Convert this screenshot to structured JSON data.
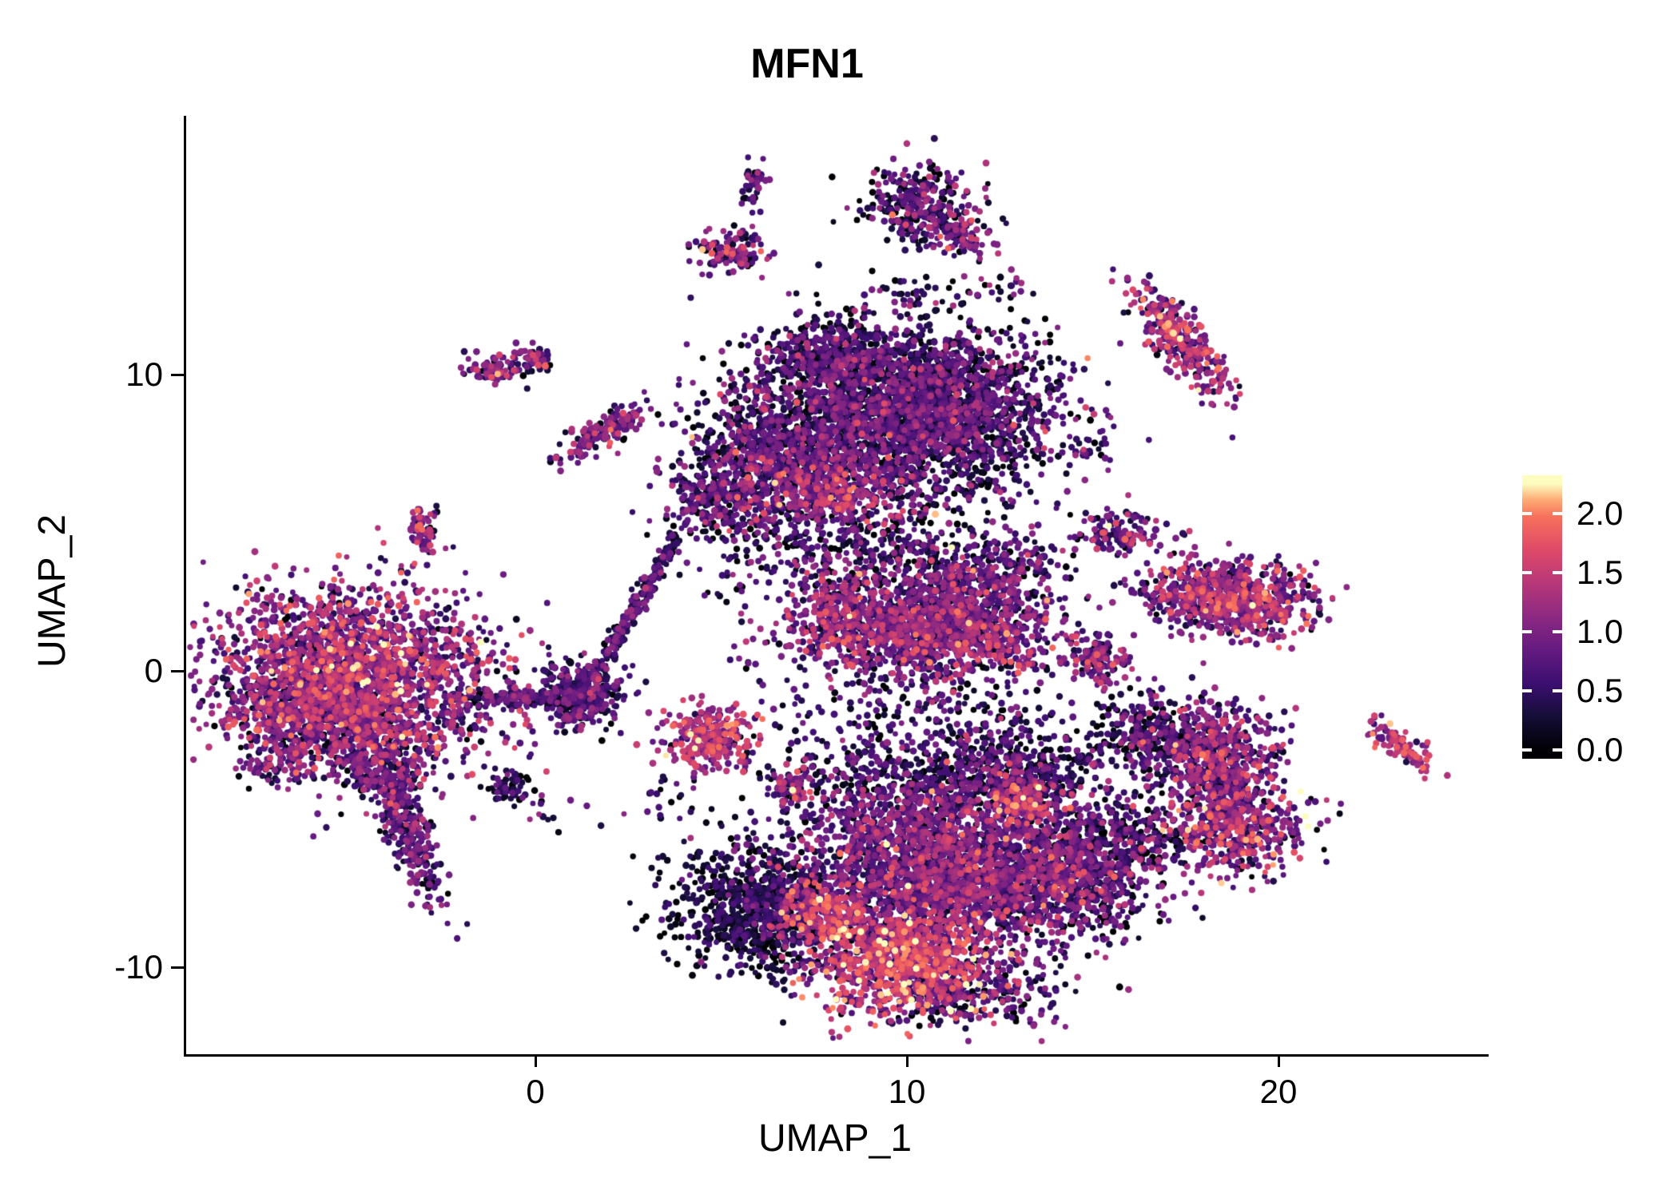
{
  "chart_data": {
    "type": "scatter",
    "title": "MFN1",
    "subtitle": "",
    "xlabel": "UMAP_1",
    "ylabel": "UMAP_2",
    "xlim": [
      -9.5,
      25.6
    ],
    "ylim": [
      -13.0,
      18.3
    ],
    "grid": false,
    "legend_position": "right",
    "x_ticks": [
      {
        "value": 0,
        "label": "0"
      },
      {
        "value": 10,
        "label": "10"
      },
      {
        "value": 20,
        "label": "20"
      }
    ],
    "y_ticks": [
      {
        "value": 10,
        "label": "10"
      },
      {
        "value": 0,
        "label": "0"
      },
      {
        "value": -10,
        "label": "-10"
      }
    ],
    "colorbar": {
      "palette": "magma",
      "vmin": 0,
      "vmax": 2.25,
      "ticks": [
        {
          "value": 2.0,
          "label": "2.0"
        },
        {
          "value": 1.5,
          "label": "1.5"
        },
        {
          "value": 1.0,
          "label": "1.0"
        },
        {
          "value": 0.5,
          "label": "0.5"
        },
        {
          "value": 0.0,
          "label": "0.0"
        }
      ]
    },
    "colormap": {
      "stops": [
        {
          "t": 0.0,
          "color": "#000004"
        },
        {
          "t": 0.125,
          "color": "#140E36"
        },
        {
          "t": 0.25,
          "color": "#3B0F70"
        },
        {
          "t": 0.375,
          "color": "#641A80"
        },
        {
          "t": 0.5,
          "color": "#8C2981"
        },
        {
          "t": 0.625,
          "color": "#B73779"
        },
        {
          "t": 0.75,
          "color": "#DE4968"
        },
        {
          "t": 0.875,
          "color": "#F7705C"
        },
        {
          "t": 0.9375,
          "color": "#FEA873"
        },
        {
          "t": 1.0,
          "color": "#FCFDBF"
        }
      ]
    },
    "clusters": [
      {
        "name": "left-main",
        "cx": -4.9,
        "cy": -0.2,
        "sx": 1.9,
        "sy": 1.45,
        "rot": -12,
        "n": 2400,
        "em": 0.95,
        "esd": 0.5
      },
      {
        "name": "left-lower",
        "cx": -6.2,
        "cy": -1.5,
        "sx": 0.95,
        "sy": 0.8,
        "rot": 0,
        "n": 500,
        "em": 0.75,
        "esd": 0.45
      },
      {
        "name": "left-tail-upper",
        "cx": -4.1,
        "cy": -3.2,
        "sx": 0.6,
        "sy": 0.6,
        "rot": 0,
        "n": 240,
        "em": 0.7,
        "esd": 0.45
      },
      {
        "name": "left-tail",
        "cx": -3.5,
        "cy": -5.4,
        "sx": 0.3,
        "sy": 1.3,
        "rot": 17,
        "n": 300,
        "em": 0.6,
        "esd": 0.4
      },
      {
        "name": "left-stray",
        "cx": -7.1,
        "cy": -3.3,
        "sx": 0.45,
        "sy": 0.3,
        "rot": 0,
        "n": 55,
        "em": 0.6,
        "esd": 0.4
      },
      {
        "name": "top-main",
        "cx": 10.0,
        "cy": 8.8,
        "sx": 1.9,
        "sy": 1.45,
        "rot": 0,
        "n": 3000,
        "em": 0.5,
        "esd": 0.42
      },
      {
        "name": "top-left-lobe",
        "cx": 6.6,
        "cy": 7.3,
        "sx": 1.25,
        "sy": 1.15,
        "rot": 0,
        "n": 900,
        "em": 0.55,
        "esd": 0.45
      },
      {
        "name": "top-left-arm",
        "cx": 7.7,
        "cy": 10.6,
        "sx": 0.9,
        "sy": 0.6,
        "rot": 0,
        "n": 280,
        "em": 0.5,
        "esd": 0.4
      },
      {
        "name": "top-south-ext",
        "cx": 4.9,
        "cy": 5.7,
        "sx": 0.7,
        "sy": 0.65,
        "rot": 0,
        "n": 240,
        "em": 0.6,
        "esd": 0.45
      },
      {
        "name": "top-hotspot",
        "cx": 7.9,
        "cy": 6.1,
        "sx": 1.0,
        "sy": 0.55,
        "rot": 0,
        "n": 260,
        "em": 1.15,
        "esd": 0.4
      },
      {
        "name": "top-below-sparse",
        "cx": 8.8,
        "cy": 4.6,
        "sx": 2.0,
        "sy": 0.85,
        "rot": 0,
        "n": 320,
        "em": 0.45,
        "esd": 0.45
      },
      {
        "name": "mid-main",
        "cx": 10.7,
        "cy": 1.5,
        "sx": 1.65,
        "sy": 0.85,
        "rot": 0,
        "n": 1500,
        "em": 0.8,
        "esd": 0.45
      },
      {
        "name": "mid-arm",
        "cx": 12.1,
        "cy": 3.3,
        "sx": 0.95,
        "sy": 0.45,
        "rot": 20,
        "n": 240,
        "em": 0.7,
        "esd": 0.45
      },
      {
        "name": "mid-west",
        "cx": 8.0,
        "cy": 2.0,
        "sx": 0.6,
        "sy": 0.7,
        "rot": 0,
        "n": 220,
        "em": 1.0,
        "esd": 0.45
      },
      {
        "name": "mid-above-sparse",
        "cx": 9.8,
        "cy": 3.6,
        "sx": 1.5,
        "sy": 0.7,
        "rot": 0,
        "n": 180,
        "em": 0.5,
        "esd": 0.45
      },
      {
        "name": "mid-below-sparse",
        "cx": 9.8,
        "cy": -1.0,
        "sx": 1.6,
        "sy": 0.8,
        "rot": 0,
        "n": 160,
        "em": 0.45,
        "esd": 0.4
      },
      {
        "name": "bottom-west-dark",
        "cx": 5.9,
        "cy": -8.1,
        "sx": 1.15,
        "sy": 1.05,
        "rot": -25,
        "n": 850,
        "em": 0.25,
        "esd": 0.3
      },
      {
        "name": "bottom-west-hot",
        "cx": 7.6,
        "cy": -8.2,
        "sx": 0.6,
        "sy": 0.5,
        "rot": 0,
        "n": 200,
        "em": 1.3,
        "esd": 0.4
      },
      {
        "name": "bottom-main",
        "cx": 10.9,
        "cy": -6.6,
        "sx": 1.9,
        "sy": 1.5,
        "rot": 0,
        "n": 2700,
        "em": 0.75,
        "esd": 0.45
      },
      {
        "name": "bottom-hotspot",
        "cx": 9.7,
        "cy": -9.9,
        "sx": 1.25,
        "sy": 0.85,
        "rot": 0,
        "n": 900,
        "em": 1.35,
        "esd": 0.45
      },
      {
        "name": "bottom-east",
        "cx": 14.5,
        "cy": -7.0,
        "sx": 1.15,
        "sy": 1.05,
        "rot": 0,
        "n": 800,
        "em": 0.6,
        "esd": 0.5
      },
      {
        "name": "bottom-north-arm",
        "cx": 12.7,
        "cy": -3.4,
        "sx": 1.35,
        "sy": 0.85,
        "rot": 0,
        "n": 600,
        "em": 0.45,
        "esd": 0.45
      },
      {
        "name": "bottom-north-hot",
        "cx": 13.1,
        "cy": -4.5,
        "sx": 0.5,
        "sy": 0.45,
        "rot": 0,
        "n": 130,
        "em": 1.3,
        "esd": 0.4
      },
      {
        "name": "bottom-nw-sparse",
        "cx": 8.6,
        "cy": -3.6,
        "sx": 1.5,
        "sy": 1.0,
        "rot": 0,
        "n": 260,
        "em": 0.4,
        "esd": 0.4
      },
      {
        "name": "bottom-south-dark",
        "cx": 11.3,
        "cy": -10.9,
        "sx": 1.3,
        "sy": 0.6,
        "rot": 0,
        "n": 300,
        "em": 0.5,
        "esd": 0.45
      },
      {
        "name": "east-upper",
        "cx": 18.7,
        "cy": 2.4,
        "sx": 1.15,
        "sy": 0.62,
        "rot": -8,
        "n": 800,
        "em": 0.95,
        "esd": 0.5
      },
      {
        "name": "east-mid-small",
        "cx": 15.1,
        "cy": 0.4,
        "sx": 0.42,
        "sy": 0.38,
        "rot": 0,
        "n": 130,
        "em": 0.9,
        "esd": 0.5
      },
      {
        "name": "east-lower-a",
        "cx": 18.0,
        "cy": -2.7,
        "sx": 1.0,
        "sy": 0.8,
        "rot": 0,
        "n": 550,
        "em": 0.8,
        "esd": 0.5
      },
      {
        "name": "east-lower-b",
        "cx": 18.8,
        "cy": -5.2,
        "sx": 0.95,
        "sy": 0.8,
        "rot": 0,
        "n": 520,
        "em": 0.95,
        "esd": 0.5
      },
      {
        "name": "east-lower-bridge",
        "cx": 18.4,
        "cy": -3.9,
        "sx": 0.5,
        "sy": 0.55,
        "rot": 0,
        "n": 150,
        "em": 0.6,
        "esd": 0.45
      },
      {
        "name": "east-lower-west-dark",
        "cx": 16.3,
        "cy": -2.0,
        "sx": 0.7,
        "sy": 0.6,
        "rot": 0,
        "n": 200,
        "em": 0.4,
        "esd": 0.4
      },
      {
        "name": "east-lower-trail",
        "cx": 16.2,
        "cy": -5.6,
        "sx": 0.8,
        "sy": 0.5,
        "rot": 0,
        "n": 140,
        "em": 0.45,
        "esd": 0.4
      },
      {
        "name": "northeast-ribbon",
        "cx": 17.3,
        "cy": 11.2,
        "sx": 0.3,
        "sy": 1.1,
        "rot": 33,
        "n": 330,
        "em": 1.05,
        "esd": 0.5
      },
      {
        "name": "north-small",
        "cx": 10.3,
        "cy": 15.7,
        "sx": 0.75,
        "sy": 0.68,
        "rot": 0,
        "n": 300,
        "em": 0.55,
        "esd": 0.5
      },
      {
        "name": "north-small-tail",
        "cx": 11.4,
        "cy": 14.7,
        "sx": 0.5,
        "sy": 0.26,
        "rot": -30,
        "n": 90,
        "em": 0.75,
        "esd": 0.45
      },
      {
        "name": "north-small-2",
        "cx": 5.2,
        "cy": 14.1,
        "sx": 0.42,
        "sy": 0.36,
        "rot": 0,
        "n": 130,
        "em": 0.75,
        "esd": 0.5
      },
      {
        "name": "north-tiny",
        "cx": 5.8,
        "cy": 16.4,
        "sx": 0.2,
        "sy": 0.38,
        "rot": 0,
        "n": 45,
        "em": 0.6,
        "esd": 0.4
      },
      {
        "name": "nw-tiny-a",
        "cx": -1.2,
        "cy": 10.2,
        "sx": 0.32,
        "sy": 0.24,
        "rot": 0,
        "n": 80,
        "em": 0.85,
        "esd": 0.45
      },
      {
        "name": "nw-tiny-b",
        "cx": -0.15,
        "cy": 10.5,
        "sx": 0.28,
        "sy": 0.22,
        "rot": 0,
        "n": 60,
        "em": 0.75,
        "esd": 0.45
      },
      {
        "name": "nw-ribbon",
        "cx": 1.8,
        "cy": 8.1,
        "sx": 0.26,
        "sy": 0.75,
        "rot": -50,
        "n": 170,
        "em": 0.8,
        "esd": 0.45
      },
      {
        "name": "west-tiny",
        "cx": -3.1,
        "cy": 4.7,
        "sx": 0.2,
        "sy": 0.42,
        "rot": 0,
        "n": 65,
        "em": 0.9,
        "esd": 0.45
      },
      {
        "name": "center-streak",
        "cx": 2.7,
        "cy": 2.3,
        "sx": 0.12,
        "sy": 1.6,
        "rot": -25,
        "n": 230,
        "em": 0.5,
        "esd": 0.35
      },
      {
        "name": "center-blob",
        "cx": 1.2,
        "cy": -0.8,
        "sx": 0.5,
        "sy": 0.55,
        "rot": 0,
        "n": 380,
        "em": 0.5,
        "esd": 0.4
      },
      {
        "name": "center-bridge",
        "cx": -0.6,
        "cy": -0.9,
        "sx": 0.75,
        "sy": 0.13,
        "rot": 0,
        "n": 130,
        "em": 0.6,
        "esd": 0.4
      },
      {
        "name": "center-hot-small",
        "cx": 4.6,
        "cy": -2.3,
        "sx": 0.6,
        "sy": 0.55,
        "rot": 0,
        "n": 300,
        "em": 1.2,
        "esd": 0.45
      },
      {
        "name": "center-tiny-hot",
        "cx": 6.8,
        "cy": -4.0,
        "sx": 0.28,
        "sy": 0.3,
        "rot": 0,
        "n": 65,
        "em": 1.0,
        "esd": 0.5
      },
      {
        "name": "center-tiny-dark",
        "cx": -0.9,
        "cy": -3.9,
        "sx": 0.3,
        "sy": 0.33,
        "rot": 0,
        "n": 55,
        "em": 0.35,
        "esd": 0.3
      },
      {
        "name": "east-tiny",
        "cx": 15.7,
        "cy": 4.7,
        "sx": 0.5,
        "sy": 0.42,
        "rot": 0,
        "n": 120,
        "em": 0.7,
        "esd": 0.55
      },
      {
        "name": "far-east-ribbon",
        "cx": 23.2,
        "cy": -2.5,
        "sx": 0.55,
        "sy": 0.22,
        "rot": -45,
        "n": 95,
        "em": 1.2,
        "esd": 0.4
      },
      {
        "name": "stray-a",
        "cx": 14.9,
        "cy": 7.4,
        "sx": 0.5,
        "sy": 0.35,
        "rot": 0,
        "n": 22,
        "em": 0.5,
        "esd": 0.4
      },
      {
        "name": "stray-b",
        "cx": 12.6,
        "cy": 12.9,
        "sx": 0.45,
        "sy": 0.35,
        "rot": 0,
        "n": 16,
        "em": 0.5,
        "esd": 0.4
      },
      {
        "name": "stray-c",
        "cx": 10.1,
        "cy": 12.9,
        "sx": 0.5,
        "sy": 0.4,
        "rot": 0,
        "n": 22,
        "em": 0.5,
        "esd": 0.4
      },
      {
        "name": "stray-d",
        "cx": 3.2,
        "cy": -4.3,
        "sx": 0.5,
        "sy": 0.4,
        "rot": 0,
        "n": 20,
        "em": 0.5,
        "esd": 0.4
      },
      {
        "name": "stray-e",
        "cx": 0.3,
        "cy": -4.8,
        "sx": 0.4,
        "sy": 0.3,
        "rot": 0,
        "n": 12,
        "em": 0.4,
        "esd": 0.35
      },
      {
        "name": "stray-f",
        "cx": 5.4,
        "cy": 3.1,
        "sx": 0.9,
        "sy": 0.7,
        "rot": 0,
        "n": 25,
        "em": 0.5,
        "esd": 0.4
      },
      {
        "name": "stray-g",
        "cx": 6.3,
        "cy": 0.6,
        "sx": 0.8,
        "sy": 0.6,
        "rot": 0,
        "n": 20,
        "em": 0.6,
        "esd": 0.45
      }
    ]
  }
}
